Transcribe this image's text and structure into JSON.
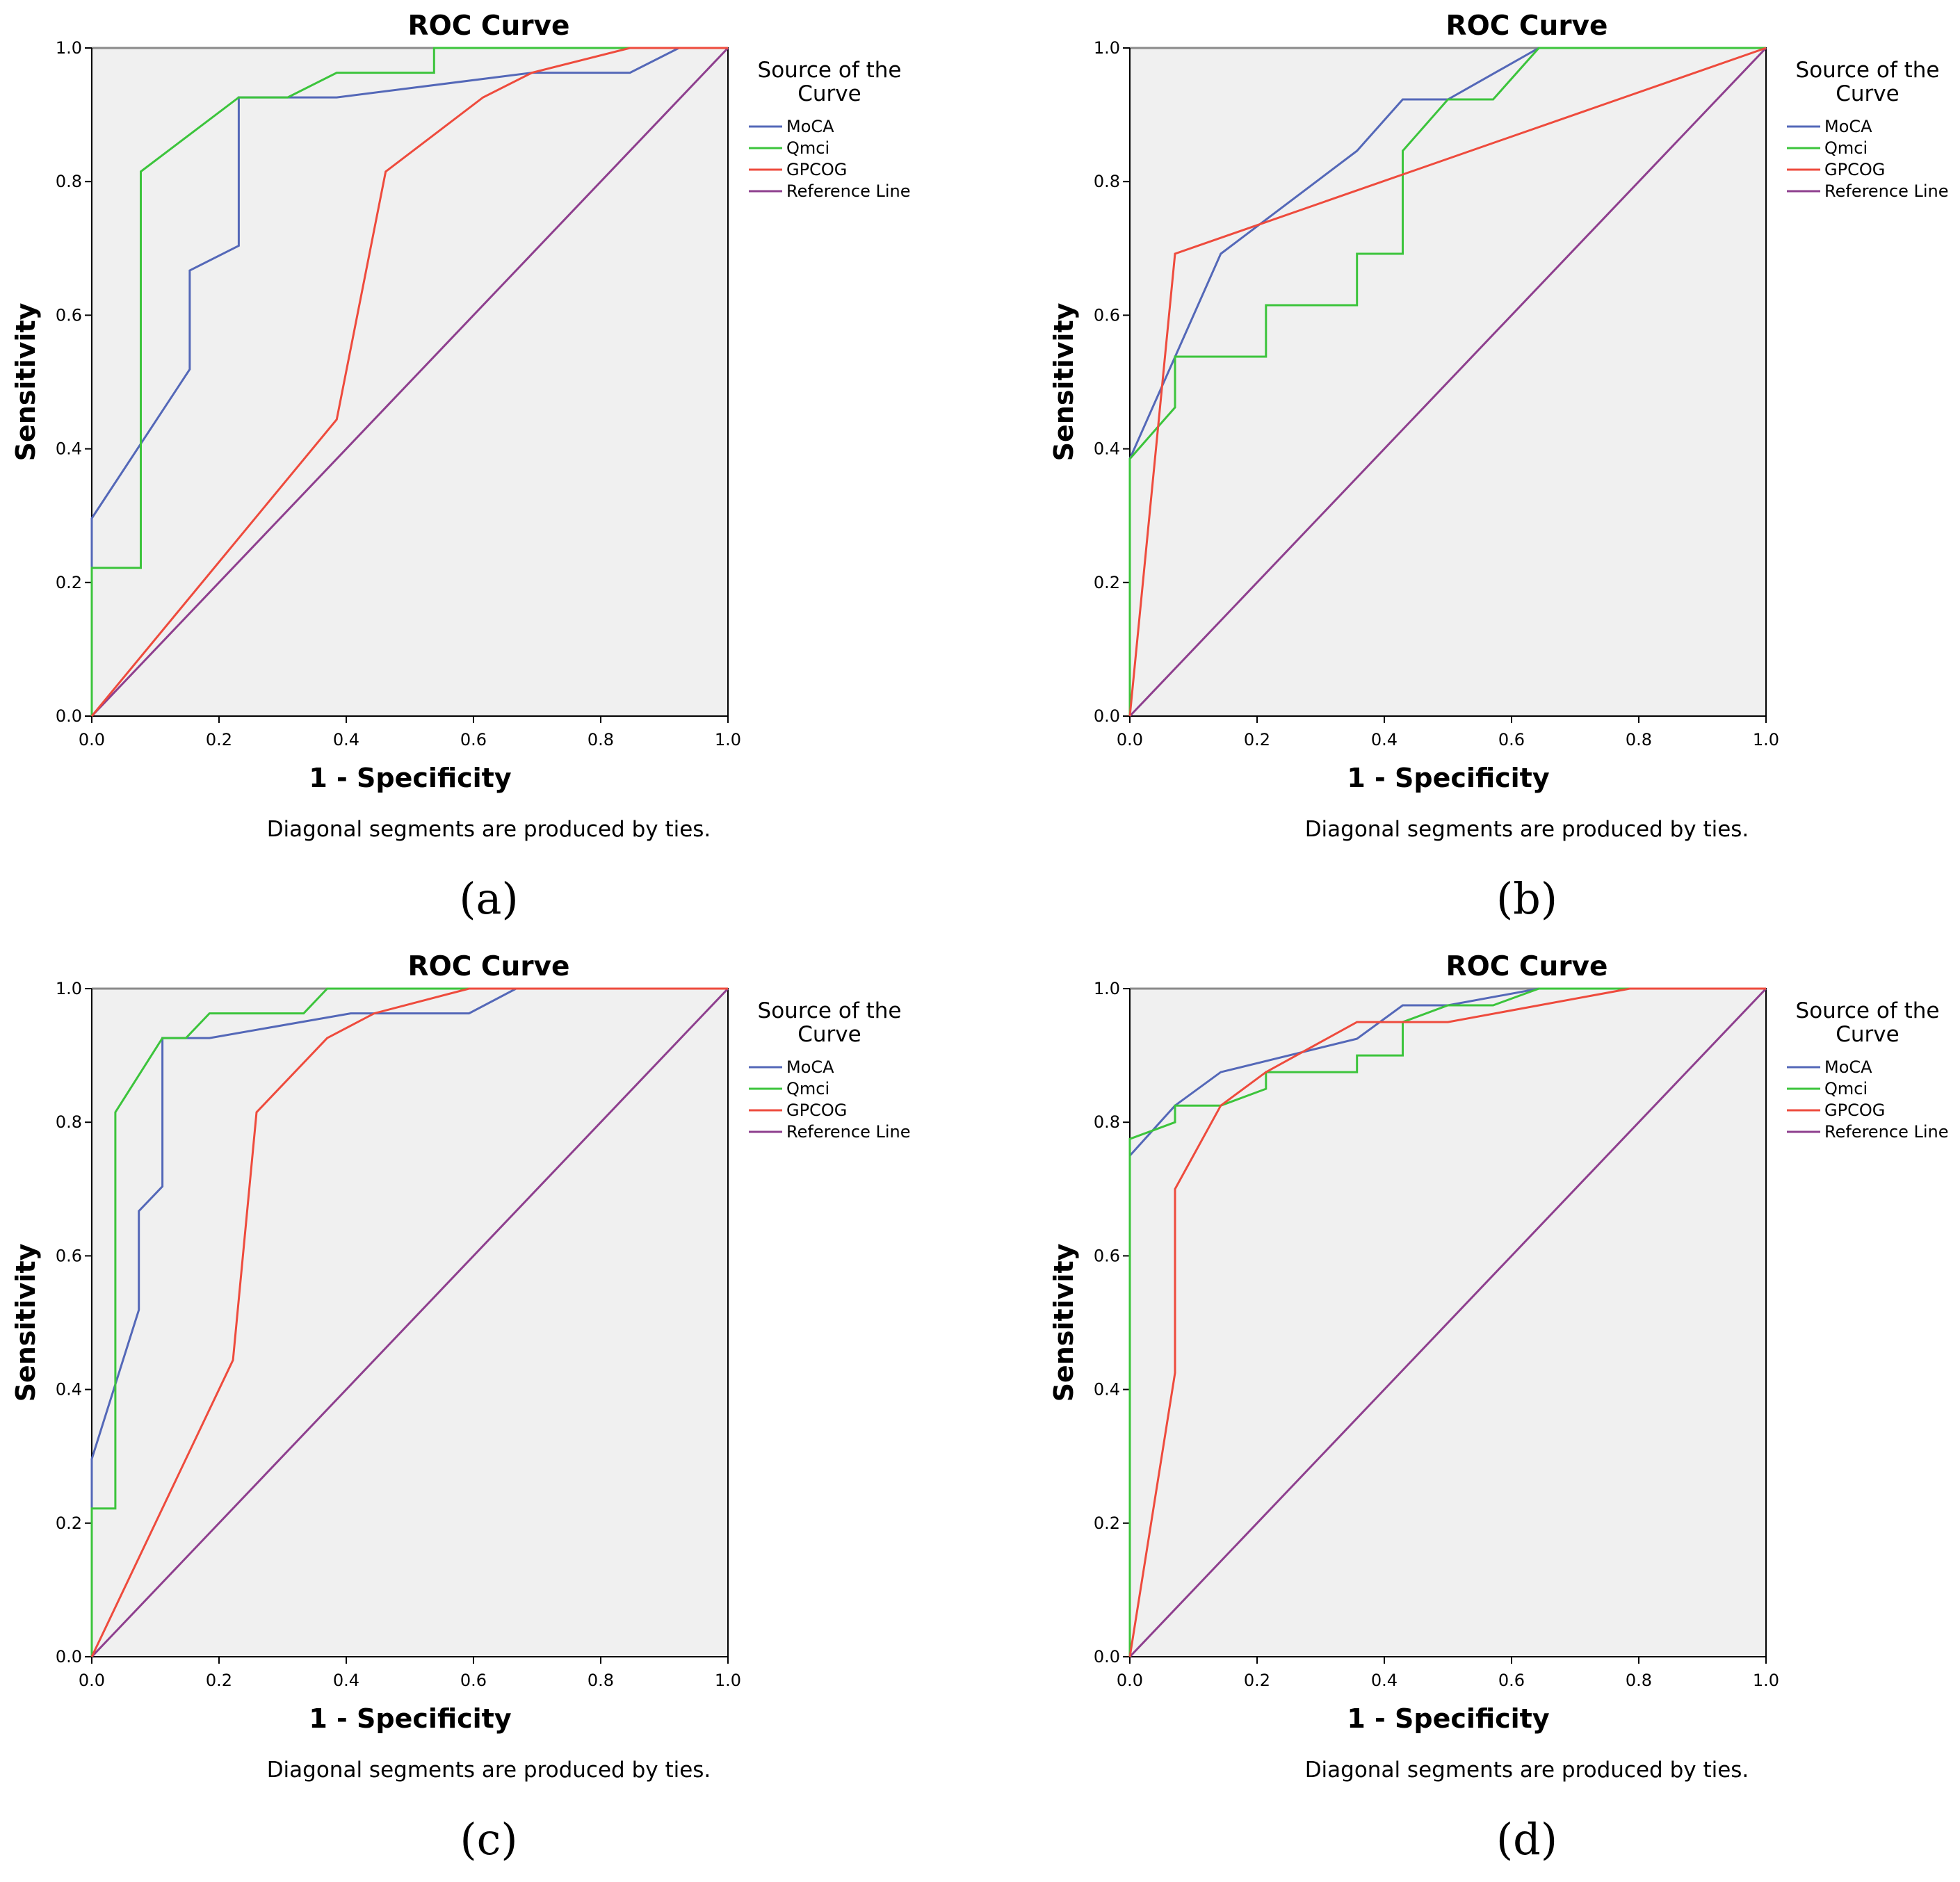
{
  "colors": {
    "MoCA": "#5468b8",
    "Qmci": "#3cc43c",
    "GPCOG": "#ee4b3d",
    "Reference Line": "#8e3f8e",
    "plot_background": "#f0f0f0"
  },
  "chart_data": [
    {
      "type": "line",
      "panel_label": "(a)",
      "title": "ROC Curve",
      "xlabel": "1 - Specificity",
      "ylabel": "Sensitivity",
      "xlim": [
        0,
        1
      ],
      "ylim": [
        0,
        1
      ],
      "xticks": [
        "0.0",
        "0.2",
        "0.4",
        "0.6",
        "0.8",
        "1.0"
      ],
      "yticks": [
        "0.0",
        "0.2",
        "0.4",
        "0.6",
        "0.8",
        "1.0"
      ],
      "note": "Diagonal segments are produced by ties.",
      "legend_title": "Source of the Curve",
      "legend_position": "right",
      "series": [
        {
          "name": "MoCA",
          "points": [
            [
              0,
              0
            ],
            [
              0,
              0.296
            ],
            [
              0.154,
              0.519
            ],
            [
              0.154,
              0.667
            ],
            [
              0.231,
              0.704
            ],
            [
              0.231,
              0.926
            ],
            [
              0.385,
              0.926
            ],
            [
              0.692,
              0.963
            ],
            [
              0.846,
              0.963
            ],
            [
              0.923,
              1
            ],
            [
              1,
              1
            ]
          ]
        },
        {
          "name": "Qmci",
          "points": [
            [
              0,
              0
            ],
            [
              0,
              0.222
            ],
            [
              0.077,
              0.222
            ],
            [
              0.077,
              0.815
            ],
            [
              0.231,
              0.926
            ],
            [
              0.308,
              0.926
            ],
            [
              0.385,
              0.963
            ],
            [
              0.538,
              0.963
            ],
            [
              0.538,
              1
            ],
            [
              1,
              1
            ]
          ]
        },
        {
          "name": "GPCOG",
          "points": [
            [
              0,
              0
            ],
            [
              0.385,
              0.444
            ],
            [
              0.462,
              0.815
            ],
            [
              0.615,
              0.926
            ],
            [
              0.692,
              0.963
            ],
            [
              0.846,
              1
            ],
            [
              1,
              1
            ]
          ]
        },
        {
          "name": "Reference Line",
          "points": [
            [
              0,
              0
            ],
            [
              1,
              1
            ]
          ]
        }
      ]
    },
    {
      "type": "line",
      "panel_label": "(b)",
      "title": "ROC Curve",
      "xlabel": "1 - Specificity",
      "ylabel": "Sensitivity",
      "xlim": [
        0,
        1
      ],
      "ylim": [
        0,
        1
      ],
      "xticks": [
        "0.0",
        "0.2",
        "0.4",
        "0.6",
        "0.8",
        "1.0"
      ],
      "yticks": [
        "0.0",
        "0.2",
        "0.4",
        "0.6",
        "0.8",
        "1.0"
      ],
      "note": "Diagonal segments are produced by ties.",
      "legend_title": "Source of the Curve",
      "legend_position": "right",
      "series": [
        {
          "name": "MoCA",
          "points": [
            [
              0,
              0
            ],
            [
              0,
              0.385
            ],
            [
              0.143,
              0.692
            ],
            [
              0.357,
              0.846
            ],
            [
              0.429,
              0.923
            ],
            [
              0.5,
              0.923
            ],
            [
              0.643,
              1
            ],
            [
              1,
              1
            ]
          ]
        },
        {
          "name": "Qmci",
          "points": [
            [
              0,
              0
            ],
            [
              0,
              0.385
            ],
            [
              0.071,
              0.462
            ],
            [
              0.071,
              0.538
            ],
            [
              0.214,
              0.538
            ],
            [
              0.214,
              0.615
            ],
            [
              0.357,
              0.615
            ],
            [
              0.357,
              0.692
            ],
            [
              0.429,
              0.692
            ],
            [
              0.429,
              0.846
            ],
            [
              0.5,
              0.923
            ],
            [
              0.571,
              0.923
            ],
            [
              0.643,
              1
            ],
            [
              1,
              1
            ]
          ]
        },
        {
          "name": "GPCOG",
          "points": [
            [
              0,
              0
            ],
            [
              0.071,
              0.692
            ],
            [
              1,
              1
            ]
          ]
        },
        {
          "name": "Reference Line",
          "points": [
            [
              0,
              0
            ],
            [
              1,
              1
            ]
          ]
        }
      ]
    },
    {
      "type": "line",
      "panel_label": "(c)",
      "title": "ROC Curve",
      "xlabel": "1 - Specificity",
      "ylabel": "Sensitivity",
      "xlim": [
        0,
        1
      ],
      "ylim": [
        0,
        1
      ],
      "xticks": [
        "0.0",
        "0.2",
        "0.4",
        "0.6",
        "0.8",
        "1.0"
      ],
      "yticks": [
        "0.0",
        "0.2",
        "0.4",
        "0.6",
        "0.8",
        "1.0"
      ],
      "note": "Diagonal segments are produced by ties.",
      "legend_title": "Source of the Curve",
      "legend_position": "right",
      "series": [
        {
          "name": "MoCA",
          "points": [
            [
              0,
              0
            ],
            [
              0,
              0.296
            ],
            [
              0.074,
              0.519
            ],
            [
              0.074,
              0.667
            ],
            [
              0.111,
              0.704
            ],
            [
              0.111,
              0.926
            ],
            [
              0.185,
              0.926
            ],
            [
              0.407,
              0.963
            ],
            [
              0.593,
              0.963
            ],
            [
              0.667,
              1
            ],
            [
              1,
              1
            ]
          ]
        },
        {
          "name": "Qmci",
          "points": [
            [
              0,
              0
            ],
            [
              0,
              0.222
            ],
            [
              0.037,
              0.222
            ],
            [
              0.037,
              0.815
            ],
            [
              0.111,
              0.926
            ],
            [
              0.148,
              0.926
            ],
            [
              0.185,
              0.963
            ],
            [
              0.333,
              0.963
            ],
            [
              0.37,
              1
            ],
            [
              1,
              1
            ]
          ]
        },
        {
          "name": "GPCOG",
          "points": [
            [
              0,
              0
            ],
            [
              0.222,
              0.444
            ],
            [
              0.259,
              0.815
            ],
            [
              0.37,
              0.926
            ],
            [
              0.444,
              0.963
            ],
            [
              0.593,
              1
            ],
            [
              1,
              1
            ]
          ]
        },
        {
          "name": "Reference Line",
          "points": [
            [
              0,
              0
            ],
            [
              1,
              1
            ]
          ]
        }
      ]
    },
    {
      "type": "line",
      "panel_label": "(d)",
      "title": "ROC Curve",
      "xlabel": "1 - Specificity",
      "ylabel": "Sensitivity",
      "xlim": [
        0,
        1
      ],
      "ylim": [
        0,
        1
      ],
      "xticks": [
        "0.0",
        "0.2",
        "0.4",
        "0.6",
        "0.8",
        "1.0"
      ],
      "yticks": [
        "0.0",
        "0.2",
        "0.4",
        "0.6",
        "0.8",
        "1.0"
      ],
      "note": "Diagonal segments are produced by ties.",
      "legend_title": "Source of the Curve",
      "legend_position": "right",
      "series": [
        {
          "name": "MoCA",
          "points": [
            [
              0,
              0
            ],
            [
              0,
              0.75
            ],
            [
              0.071,
              0.825
            ],
            [
              0.143,
              0.875
            ],
            [
              0.357,
              0.925
            ],
            [
              0.429,
              0.975
            ],
            [
              0.5,
              0.975
            ],
            [
              0.643,
              1
            ],
            [
              1,
              1
            ]
          ]
        },
        {
          "name": "Qmci",
          "points": [
            [
              0,
              0
            ],
            [
              0,
              0.775
            ],
            [
              0.071,
              0.8
            ],
            [
              0.071,
              0.825
            ],
            [
              0.143,
              0.825
            ],
            [
              0.214,
              0.85
            ],
            [
              0.214,
              0.875
            ],
            [
              0.357,
              0.875
            ],
            [
              0.357,
              0.9
            ],
            [
              0.429,
              0.9
            ],
            [
              0.429,
              0.95
            ],
            [
              0.5,
              0.975
            ],
            [
              0.571,
              0.975
            ],
            [
              0.643,
              1
            ],
            [
              1,
              1
            ]
          ]
        },
        {
          "name": "GPCOG",
          "points": [
            [
              0,
              0
            ],
            [
              0.071,
              0.425
            ],
            [
              0.071,
              0.7
            ],
            [
              0.143,
              0.825
            ],
            [
              0.214,
              0.875
            ],
            [
              0.357,
              0.95
            ],
            [
              0.5,
              0.95
            ],
            [
              0.786,
              1
            ],
            [
              1,
              1
            ]
          ]
        },
        {
          "name": "Reference Line",
          "points": [
            [
              0,
              0
            ],
            [
              1,
              1
            ]
          ]
        }
      ]
    }
  ]
}
